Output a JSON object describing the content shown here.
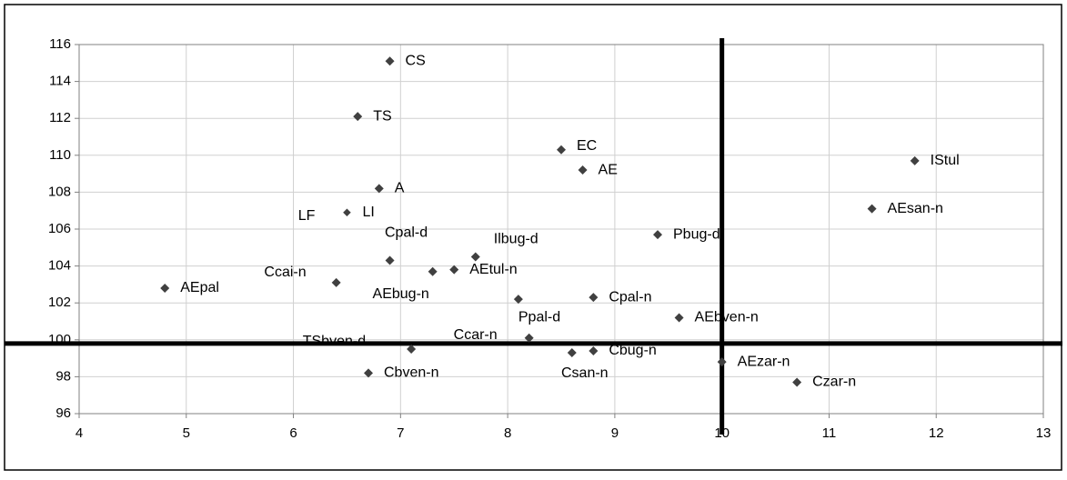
{
  "chart_data": {
    "type": "scatter",
    "labels": [
      "CS",
      "TS",
      "EC",
      "AE",
      "IStul",
      "A",
      "AEsan-n",
      "LF",
      "LI",
      "Pbug-d",
      "Ilbug-d",
      "Cpal-d",
      "AEbug-n",
      "AEtul-n",
      "Ccai-n",
      "AEpal",
      "Ppal-d",
      "Cpal-n",
      "AEbven-n",
      "Ccar-n",
      "TSbven-d",
      "Csan-n",
      "Cbug-n",
      "AEzar-n",
      "Cbven-n",
      "Czar-n"
    ],
    "x": [
      6.9,
      6.6,
      8.5,
      8.7,
      11.8,
      6.8,
      11.4,
      6.5,
      6.5,
      9.4,
      7.7,
      6.9,
      7.3,
      7.5,
      6.4,
      4.8,
      8.1,
      8.8,
      9.6,
      8.2,
      7.1,
      8.6,
      8.8,
      10,
      6.7,
      10.7
    ],
    "values": [
      115.1,
      112.1,
      110.3,
      109.2,
      109.7,
      108.2,
      107.1,
      106.9,
      106.9,
      105.7,
      104.5,
      104.3,
      103.7,
      103.8,
      103.1,
      102.8,
      102.2,
      102.3,
      101.2,
      100.1,
      99.5,
      99.3,
      99.4,
      98.8,
      98.2,
      97.7
    ],
    "color": "#404040",
    "xlim": [
      4,
      13
    ],
    "xticks": [
      4,
      5,
      6,
      7,
      8,
      9,
      10,
      11,
      12,
      13
    ],
    "ylim": [
      96,
      116
    ],
    "yticks": [
      96,
      98,
      100,
      102,
      104,
      106,
      108,
      110,
      112,
      114,
      116
    ],
    "grid": true,
    "reference_lines": {
      "x": 10,
      "y": 99.8
    }
  }
}
